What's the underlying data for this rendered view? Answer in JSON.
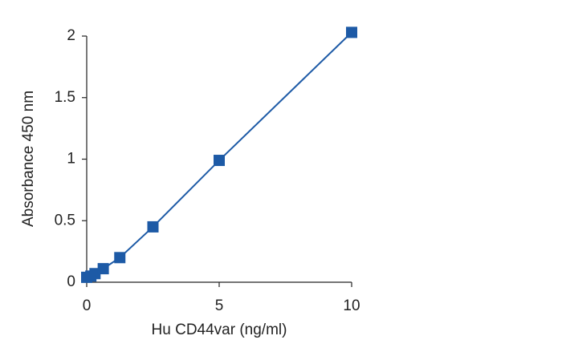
{
  "chart_data": {
    "type": "line",
    "x_label": "Hu CD44var (ng/ml)",
    "y_label": "Absorbance 450 nm",
    "x": [
      0,
      0.156,
      0.3125,
      0.625,
      1.25,
      2.5,
      5,
      10
    ],
    "series": [
      {
        "color": "#1d5aa6",
        "values": [
          0.04,
          0.05,
          0.07,
          0.11,
          0.2,
          0.45,
          0.99,
          2.03
        ]
      }
    ],
    "xlim": [
      0,
      10
    ],
    "xticks": [
      0,
      5,
      10
    ],
    "ylim": [
      0,
      2
    ],
    "yticks": [
      0,
      0.5,
      1,
      1.5,
      2
    ],
    "grid": false
  }
}
